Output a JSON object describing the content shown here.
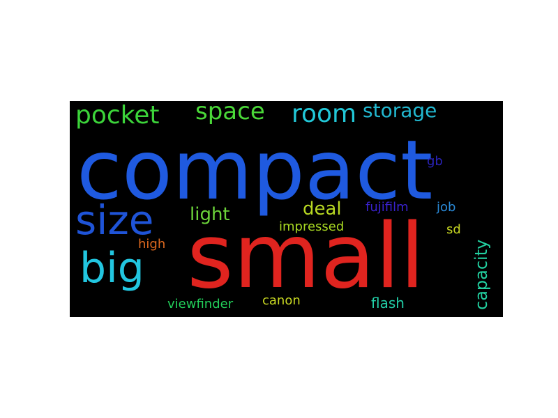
{
  "words": [
    {
      "id": "compact",
      "text": "compact",
      "color": "#1f5ae0"
    },
    {
      "id": "small",
      "text": "small",
      "color": "#e0241f"
    },
    {
      "id": "size",
      "text": "size",
      "color": "#1f54d8"
    },
    {
      "id": "big",
      "text": "big",
      "color": "#22c6e0"
    },
    {
      "id": "pocket",
      "text": "pocket",
      "color": "#3cd43a"
    },
    {
      "id": "space",
      "text": "space",
      "color": "#4ad838"
    },
    {
      "id": "room",
      "text": "room",
      "color": "#22c8d8"
    },
    {
      "id": "storage",
      "text": "storage",
      "color": "#22b8d0"
    },
    {
      "id": "light",
      "text": "light",
      "color": "#6cd43a"
    },
    {
      "id": "deal",
      "text": "deal",
      "color": "#b8d822"
    },
    {
      "id": "fujifilm",
      "text": "fujifilm",
      "color": "#3a22d0"
    },
    {
      "id": "job",
      "text": "job",
      "color": "#2a8ad8"
    },
    {
      "id": "gb",
      "text": "gb",
      "color": "#2a22b8"
    },
    {
      "id": "impressed",
      "text": "impressed",
      "color": "#a8d822"
    },
    {
      "id": "sd",
      "text": "sd",
      "color": "#c8d822"
    },
    {
      "id": "capacity",
      "text": "capacity",
      "color": "#22d0a0"
    },
    {
      "id": "high",
      "text": "high",
      "color": "#e06a1f"
    },
    {
      "id": "viewfinder",
      "text": "viewfinder",
      "color": "#22d05a"
    },
    {
      "id": "canon",
      "text": "canon",
      "color": "#c8d822"
    },
    {
      "id": "flash",
      "text": "flash",
      "color": "#22d0a8"
    }
  ]
}
